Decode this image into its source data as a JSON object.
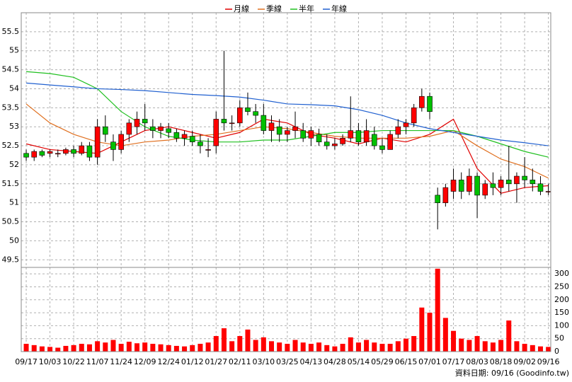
{
  "chart_data": {
    "type": "candlestick",
    "xlim": [
      -0.63,
      66.3
    ],
    "xticks": [
      {
        "value": 0,
        "label": "09/17"
      },
      {
        "value": 3,
        "label": "10/03"
      },
      {
        "value": 6,
        "label": "10/22"
      },
      {
        "value": 9,
        "label": "11/07"
      },
      {
        "value": 12,
        "label": "11/24"
      },
      {
        "value": 15,
        "label": "12/09"
      },
      {
        "value": 18,
        "label": "12/24"
      },
      {
        "value": 21,
        "label": "01/12"
      },
      {
        "value": 24,
        "label": "01/27"
      },
      {
        "value": 27,
        "label": "02/11"
      },
      {
        "value": 30,
        "label": "03/10"
      },
      {
        "value": 33,
        "label": "03/25"
      },
      {
        "value": 36,
        "label": "04/13"
      },
      {
        "value": 39,
        "label": "04/28"
      },
      {
        "value": 42,
        "label": "05/14"
      },
      {
        "value": 45,
        "label": "05/29"
      },
      {
        "value": 48,
        "label": "06/15"
      },
      {
        "value": 51,
        "label": "07/01"
      },
      {
        "value": 54,
        "label": "07/17"
      },
      {
        "value": 57,
        "label": "08/03"
      },
      {
        "value": 60,
        "label": "08/18"
      },
      {
        "value": 63,
        "label": "09/02"
      },
      {
        "value": 66,
        "label": "09/16"
      }
    ],
    "ylim": [
      49.3,
      56
    ],
    "yticks": [
      49.5,
      50,
      50.5,
      51,
      51.5,
      52,
      52.5,
      53,
      53.5,
      54,
      54.5,
      55,
      55.5
    ],
    "y2lim": [
      0,
      325
    ],
    "y2ticks": [
      0,
      50,
      100,
      150,
      200,
      250,
      300
    ],
    "grid": true,
    "up_color": "#ff0000",
    "down_color": "#00c000",
    "volume_color": "#ff0000",
    "open": [
      52.3,
      52.2,
      52.35,
      52.3,
      52.3,
      52.3,
      52.4,
      52.3,
      52.5,
      52.2,
      53.0,
      52.6,
      52.4,
      52.8,
      53.0,
      53.2,
      53.0,
      52.9,
      52.95,
      52.85,
      52.7,
      52.75,
      52.6,
      52.4,
      52.5,
      53.2,
      53.1,
      53.1,
      53.5,
      53.4,
      53.3,
      52.9,
      53.0,
      52.8,
      52.9,
      52.9,
      52.7,
      52.8,
      52.6,
      52.5,
      52.55,
      52.7,
      52.9,
      52.6,
      52.8,
      52.5,
      52.4,
      52.8,
      53.0,
      53.1,
      53.5,
      53.8,
      51.2,
      51.0,
      51.3,
      51.6,
      51.3,
      51.7,
      51.2,
      51.5,
      51.4,
      51.6,
      51.5,
      51.7,
      51.6,
      51.5,
      51.3
    ],
    "high": [
      52.4,
      52.4,
      52.4,
      52.4,
      52.4,
      52.45,
      52.5,
      52.6,
      52.6,
      53.2,
      53.3,
      52.8,
      52.9,
      53.2,
      53.4,
      53.6,
      53.2,
      53.1,
      53.1,
      52.95,
      52.9,
      52.9,
      52.8,
      52.7,
      53.4,
      55.0,
      53.3,
      53.7,
      53.9,
      53.6,
      53.6,
      53.3,
      53.2,
      53.0,
      53.4,
      53.1,
      53.0,
      52.95,
      52.8,
      52.7,
      52.8,
      53.8,
      53.1,
      53.2,
      53.0,
      52.7,
      52.9,
      53.2,
      53.2,
      53.6,
      54.0,
      53.9,
      51.4,
      51.5,
      51.9,
      51.8,
      51.9,
      51.8,
      51.6,
      51.8,
      51.7,
      52.5,
      51.8,
      52.2,
      51.9,
      51.7,
      51.5
    ],
    "low": [
      52.1,
      52.1,
      52.2,
      52.2,
      52.2,
      52.25,
      52.2,
      52.25,
      52.1,
      52.0,
      52.6,
      52.1,
      52.3,
      52.6,
      52.8,
      52.9,
      52.7,
      52.7,
      52.7,
      52.6,
      52.5,
      52.5,
      52.3,
      52.2,
      52.3,
      52.9,
      52.9,
      53.0,
      53.3,
      53.1,
      52.8,
      52.6,
      52.6,
      52.6,
      52.7,
      52.6,
      52.5,
      52.5,
      52.4,
      52.4,
      52.5,
      52.6,
      52.5,
      52.5,
      52.4,
      52.3,
      52.4,
      52.7,
      52.8,
      53.0,
      53.4,
      53.2,
      50.3,
      50.9,
      51.1,
      51.1,
      51.2,
      50.6,
      51.1,
      51.2,
      51.2,
      51.3,
      51.0,
      51.4,
      51.3,
      51.2,
      51.2
    ],
    "close": [
      52.2,
      52.35,
      52.25,
      52.35,
      52.3,
      52.4,
      52.3,
      52.5,
      52.2,
      53.0,
      52.8,
      52.4,
      52.8,
      53.1,
      53.2,
      53.1,
      52.9,
      53.0,
      52.85,
      52.7,
      52.8,
      52.6,
      52.5,
      52.4,
      53.2,
      53.1,
      53.1,
      53.5,
      53.4,
      53.3,
      52.9,
      53.1,
      52.8,
      52.9,
      53.0,
      52.7,
      52.9,
      52.6,
      52.5,
      52.55,
      52.7,
      52.9,
      52.6,
      52.9,
      52.5,
      52.4,
      52.8,
      53.0,
      53.1,
      53.5,
      53.8,
      53.4,
      51.0,
      51.4,
      51.6,
      51.3,
      51.7,
      51.2,
      51.5,
      51.4,
      51.6,
      51.5,
      51.7,
      51.6,
      51.5,
      51.3,
      51.3
    ],
    "volume": [
      30,
      25,
      20,
      18,
      15,
      22,
      25,
      30,
      28,
      40,
      35,
      45,
      30,
      38,
      32,
      35,
      30,
      28,
      25,
      22,
      20,
      25,
      30,
      35,
      60,
      90,
      40,
      60,
      85,
      45,
      55,
      40,
      35,
      30,
      45,
      35,
      30,
      35,
      25,
      20,
      30,
      55,
      35,
      45,
      35,
      30,
      30,
      40,
      50,
      60,
      170,
      150,
      320,
      130,
      80,
      50,
      45,
      60,
      40,
      35,
      45,
      120,
      40,
      30,
      25,
      20,
      18
    ],
    "ma_x": [
      0,
      3,
      6,
      9,
      12,
      15,
      18,
      21,
      24,
      27,
      30,
      33,
      36,
      39,
      42,
      45,
      48,
      51,
      54,
      57,
      60,
      63,
      66
    ],
    "series": [
      {
        "name": "月線",
        "color": "#e00000",
        "values": [
          52.55,
          52.4,
          52.35,
          52.3,
          52.6,
          52.9,
          53.0,
          52.85,
          52.7,
          52.85,
          53.2,
          53.1,
          52.8,
          52.7,
          52.55,
          52.7,
          52.6,
          52.8,
          53.2,
          51.9,
          51.25,
          51.4,
          51.45
        ]
      },
      {
        "name": "季線",
        "color": "#e07020",
        "values": [
          53.6,
          53.1,
          52.8,
          52.6,
          52.5,
          52.6,
          52.65,
          52.75,
          52.8,
          52.9,
          53.0,
          52.95,
          52.85,
          52.75,
          52.7,
          52.7,
          52.7,
          52.75,
          52.9,
          52.5,
          52.15,
          51.95,
          51.65
        ]
      },
      {
        "name": "半年",
        "color": "#20c020",
        "values": [
          54.45,
          54.4,
          54.3,
          54.0,
          53.4,
          53.0,
          52.75,
          52.65,
          52.6,
          52.6,
          52.65,
          52.65,
          52.75,
          52.85,
          52.85,
          52.9,
          52.9,
          52.9,
          52.9,
          52.75,
          52.55,
          52.35,
          52.2
        ]
      },
      {
        "name": "年線",
        "color": "#2060d0",
        "values": [
          54.15,
          54.1,
          54.05,
          54.0,
          53.98,
          53.95,
          53.9,
          53.85,
          53.82,
          53.78,
          53.7,
          53.6,
          53.58,
          53.55,
          53.45,
          53.3,
          53.1,
          52.95,
          52.85,
          52.75,
          52.65,
          52.58,
          52.5
        ]
      }
    ],
    "footnote": "資料日期: 09/16 (Goodinfo.tw)"
  }
}
